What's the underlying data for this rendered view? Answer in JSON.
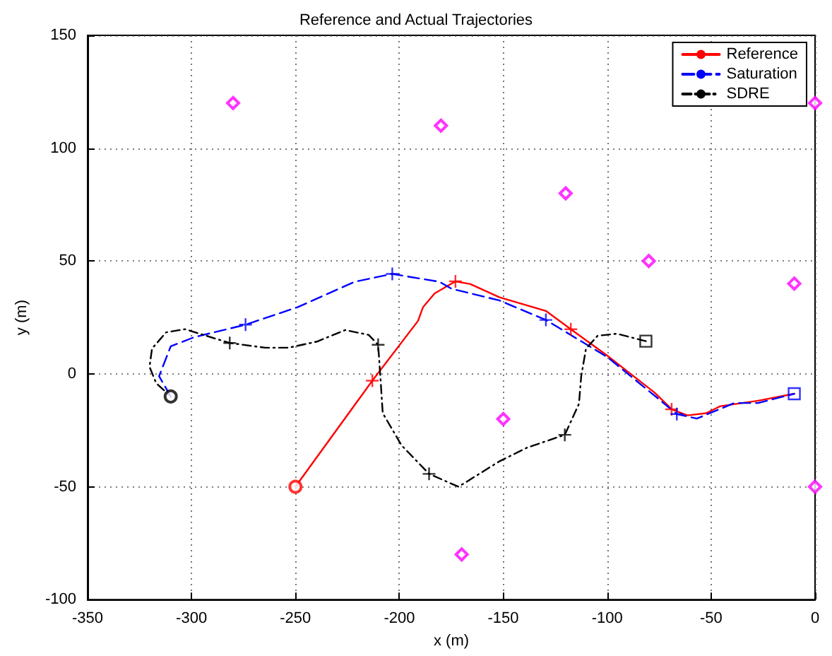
{
  "chart_data": {
    "type": "line",
    "title": "Reference and Actual Trajectories",
    "xlabel": "x (m)",
    "ylabel": "y (m)",
    "xlim": [
      -350,
      0
    ],
    "xticks": [
      -350,
      -300,
      -250,
      -200,
      -150,
      -100,
      -50,
      0
    ],
    "ylim": [
      -100,
      150
    ],
    "yticks": [
      -100,
      -50,
      0,
      50,
      100,
      150
    ],
    "grid": true,
    "legend": "top right",
    "marker": "none",
    "series": [
      {
        "name": "Reference",
        "color": "#ff0000",
        "line_style": "solid",
        "x": [
          -250,
          -213,
          -191,
          -188.6,
          -183,
          -173,
          -165.8,
          -152,
          -129.5,
          -117.5,
          -100,
          -77.3,
          -68.9,
          -61.4,
          -52.4,
          -45.6,
          -27.4,
          -10
        ],
        "values": [
          -50,
          -3,
          23.5,
          29.6,
          35.7,
          41,
          39.8,
          34,
          27.9,
          19.8,
          8.1,
          -8.2,
          -15.7,
          -18.4,
          -17.4,
          -14.3,
          -11.9,
          -8.8
        ]
      },
      {
        "name": "Saturation",
        "color": "#0000ff",
        "line_style": "dashed",
        "x": [
          -310,
          -315.6,
          -310,
          -298.6,
          -274,
          -248.8,
          -221.6,
          -203.4,
          -180.7,
          -174.8,
          -152,
          -129.5,
          -100,
          -75,
          -66.5,
          -56.9,
          -38.8,
          -27.4,
          -10
        ],
        "values": [
          -10,
          -1,
          12.2,
          16.3,
          21.8,
          29.6,
          40.8,
          44.3,
          40.8,
          37.7,
          32.6,
          23.9,
          7.5,
          -11.3,
          -17.8,
          -19.8,
          -12.9,
          -12.9,
          -8.8
        ]
      },
      {
        "name": "SDRE",
        "color": "#000000",
        "line_style": "dashdot",
        "x": [
          -81.4,
          -95.4,
          -104.6,
          -110.2,
          -112.5,
          -113.6,
          -120.4,
          -138.6,
          -152,
          -168,
          -171.6,
          -185.7,
          -198.9,
          -208,
          -209,
          -210.2,
          -214.8,
          -226,
          -239.7,
          -253.3,
          -264.6,
          -281.6,
          -303.2,
          -312.2,
          -319,
          -320.2,
          -317,
          -310
        ],
        "values": [
          14.5,
          17.8,
          16.9,
          11.2,
          -1,
          -13.3,
          -27,
          -32.7,
          -38.8,
          -48,
          -50,
          -44.3,
          -31.7,
          -17.4,
          -3.1,
          12.9,
          17.3,
          19.4,
          14.3,
          11.6,
          11.6,
          13.7,
          19.8,
          18.4,
          11.2,
          3.1,
          -4.1,
          -10
        ]
      },
      {
        "type": "scatter",
        "marker": "cross",
        "color": "#ff0000",
        "x": [
          -213,
          -173,
          -117.5,
          -69
        ],
        "values": [
          -3,
          41,
          19.8,
          -15.7
        ]
      },
      {
        "type": "scatter",
        "marker": "cross",
        "color": "#0000ff",
        "x": [
          -274,
          -203.4,
          -129.5,
          -66.5
        ],
        "values": [
          21.8,
          44.3,
          23.9,
          -17.8
        ]
      },
      {
        "type": "scatter",
        "marker": "cross",
        "color": "#000000",
        "x": [
          -281.6,
          -210.2,
          -185.7,
          -120.4
        ],
        "values": [
          13.7,
          12.9,
          -44.3,
          -27
        ]
      },
      {
        "type": "scatter",
        "marker": "circle",
        "color": "#ff0000",
        "x": [
          -250
        ],
        "values": [
          -50
        ]
      },
      {
        "type": "scatter",
        "marker": "circle",
        "color": "#000000",
        "x": [
          -310
        ],
        "values": [
          -10
        ]
      },
      {
        "type": "scatter",
        "marker": "square",
        "color": "#000000",
        "x": [
          -81.4
        ],
        "values": [
          14.5
        ]
      },
      {
        "type": "scatter",
        "marker": "square",
        "color": "#0000ff",
        "x": [
          -10
        ],
        "values": [
          -8.8
        ]
      },
      {
        "type": "scatter",
        "marker": "diamond",
        "color": "#ff00ff",
        "x": [
          -280,
          -180,
          -120,
          -80,
          -10,
          0,
          -150,
          -170,
          0
        ],
        "values": [
          120,
          110,
          80,
          50,
          40,
          120,
          -20,
          -80,
          -50
        ]
      }
    ]
  }
}
